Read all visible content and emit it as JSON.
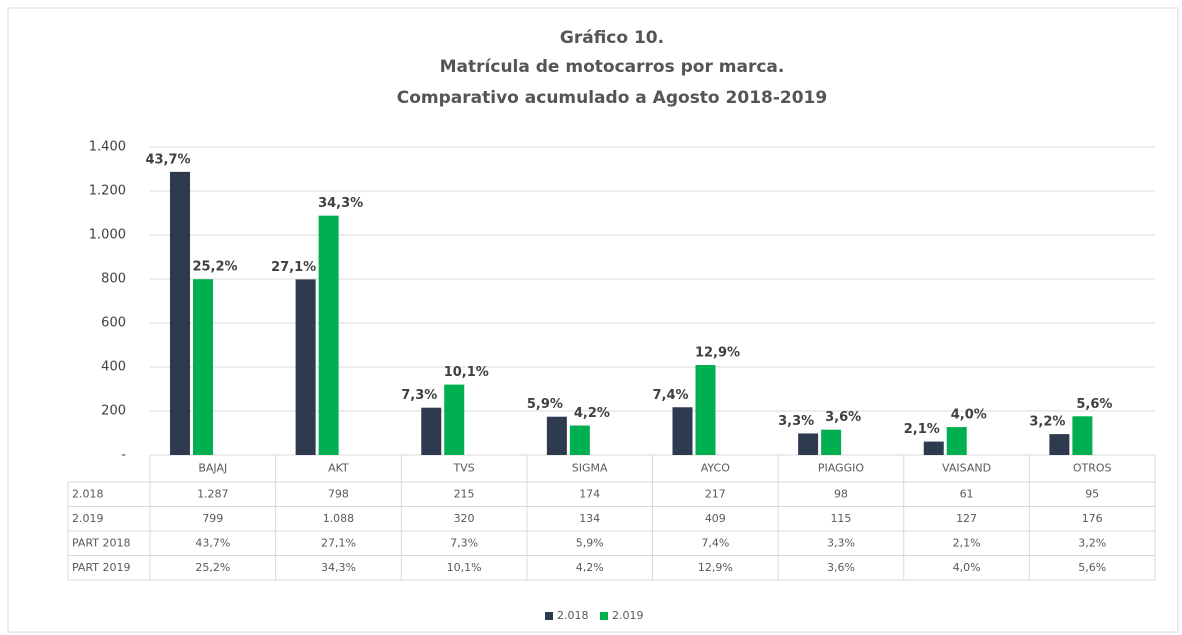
{
  "chart_data": {
    "type": "bar",
    "title": "Gráfico 10.",
    "subtitle": [
      "Matrícula de motocarros por marca.",
      "Comparativo acumulado a Agosto 2018-2019"
    ],
    "categories": [
      "BAJAJ",
      "AKT",
      "TVS",
      "SIGMA",
      "AYCO",
      "PIAGGIO",
      "VAISAND",
      "OTROS"
    ],
    "series": [
      {
        "name": "2.018",
        "color": "#2e3a4e",
        "values": [
          1287,
          798,
          215,
          174,
          217,
          98,
          61,
          95
        ],
        "value_labels": [
          "1.287",
          "798",
          "215",
          "174",
          "217",
          "98",
          "61",
          "95"
        ],
        "share_name": "PART 2018",
        "share": [
          43.7,
          27.1,
          7.3,
          5.9,
          7.4,
          3.3,
          2.1,
          3.2
        ],
        "share_labels": [
          "43,7%",
          "27,1%",
          "7,3%",
          "5,9%",
          "7,4%",
          "3,3%",
          "2,1%",
          "3,2%"
        ]
      },
      {
        "name": "2.019",
        "color": "#00b050",
        "values": [
          799,
          1088,
          320,
          134,
          409,
          115,
          127,
          176
        ],
        "value_labels": [
          "799",
          "1.088",
          "320",
          "134",
          "409",
          "115",
          "127",
          "176"
        ],
        "share_name": "PART 2019",
        "share": [
          25.2,
          34.3,
          10.1,
          4.2,
          12.9,
          3.6,
          4.0,
          5.6
        ],
        "share_labels": [
          "25,2%",
          "34,3%",
          "10,1%",
          "4,2%",
          "12,9%",
          "3,6%",
          "4,0%",
          "5,6%"
        ]
      }
    ],
    "ylim": [
      0,
      1400
    ],
    "yticks": [
      {
        "value": 0,
        "label": "-"
      },
      200,
      400,
      600,
      800,
      {
        "value": 1000,
        "label": "1.000"
      },
      {
        "value": 1200,
        "label": "1.200"
      },
      {
        "value": 1400,
        "label": "1.400"
      }
    ],
    "grid": true,
    "legend": "bottom"
  }
}
